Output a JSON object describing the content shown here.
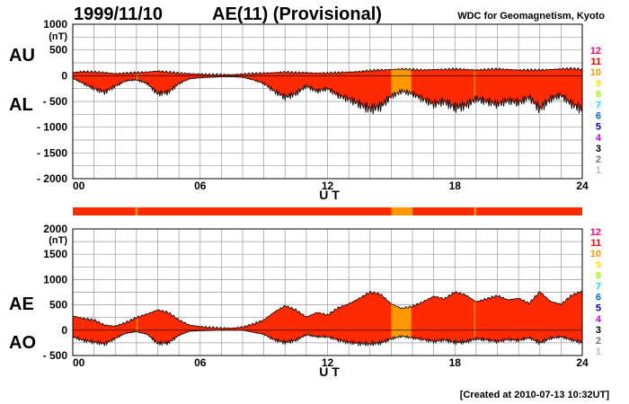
{
  "header": {
    "date": "1999/11/10",
    "title": "AE(11) (Provisional)",
    "source": "WDC for Geomagnetism, Kyoto"
  },
  "footer": {
    "created": "[Created at 2010-07-13 10:32UT]"
  },
  "colors": {
    "fill_main": "#ff2a00",
    "fill_alt": "#ff9900",
    "grid": "#999999",
    "status_bar": "#ff2a00"
  },
  "station_scale": [
    {
      "label": "12",
      "color": "#ff0080"
    },
    {
      "label": "11",
      "color": "#ff0000"
    },
    {
      "label": "10",
      "color": "#ff9900"
    },
    {
      "label": "9",
      "color": "#ffe600"
    },
    {
      "label": "8",
      "color": "#a0ff00"
    },
    {
      "label": "7",
      "color": "#00e6ff"
    },
    {
      "label": "6",
      "color": "#0066ff"
    },
    {
      "label": "5",
      "color": "#0000cc"
    },
    {
      "label": "4",
      "color": "#cc00ff"
    },
    {
      "label": "3",
      "color": "#000000"
    },
    {
      "label": "2",
      "color": "#777777"
    },
    {
      "label": "1",
      "color": "#bbbbbb"
    }
  ],
  "chart_data": [
    {
      "id": "au-al",
      "type": "area",
      "title": "",
      "xlabel": "U T",
      "ylabel": "(nT)",
      "side_labels": [
        "AU",
        "AL"
      ],
      "xlim": [
        0,
        24
      ],
      "ylim": [
        -2000,
        1000
      ],
      "xticks": [
        "00",
        "06",
        "12",
        "18",
        "24"
      ],
      "yticks": [
        1000,
        500,
        0,
        -500,
        -1000,
        -1500,
        -2000
      ],
      "ytick_labels": [
        "1000",
        "500",
        "0",
        "- 500",
        "- 1000",
        "- 1500",
        "- 2000"
      ],
      "grid": true,
      "hours": [
        0,
        0.5,
        1,
        1.5,
        2,
        2.5,
        3,
        3.5,
        4,
        4.5,
        5,
        5.5,
        6,
        6.5,
        7,
        7.5,
        8,
        8.5,
        9,
        9.5,
        10,
        10.5,
        11,
        11.5,
        12,
        12.5,
        13,
        13.5,
        14,
        14.5,
        15,
        15.5,
        16,
        16.5,
        17,
        17.5,
        18,
        18.5,
        19,
        19.5,
        20,
        20.5,
        21,
        21.5,
        22,
        22.5,
        23,
        23.5,
        24
      ],
      "series": [
        {
          "name": "AU",
          "values": [
            60,
            80,
            70,
            60,
            40,
            50,
            60,
            70,
            90,
            70,
            50,
            40,
            30,
            20,
            20,
            20,
            30,
            40,
            50,
            60,
            70,
            60,
            60,
            50,
            50,
            60,
            70,
            80,
            100,
            110,
            120,
            130,
            120,
            110,
            120,
            120,
            130,
            120,
            110,
            120,
            130,
            120,
            110,
            110,
            110,
            120,
            130,
            140,
            120
          ]
        },
        {
          "name": "AL",
          "values": [
            -50,
            -150,
            -250,
            -320,
            -200,
            -100,
            -80,
            -150,
            -350,
            -320,
            -150,
            -60,
            -40,
            -30,
            -20,
            -20,
            -30,
            -80,
            -150,
            -300,
            -420,
            -350,
            -200,
            -300,
            -250,
            -380,
            -450,
            -550,
            -650,
            -600,
            -400,
            -300,
            -350,
            -450,
            -550,
            -500,
            -620,
            -580,
            -450,
            -500,
            -550,
            -480,
            -520,
            -420,
            -650,
            -450,
            -380,
            -550,
            -650
          ]
        }
      ]
    },
    {
      "id": "ae-ao",
      "type": "area",
      "title": "",
      "xlabel": "U T",
      "ylabel": "(nT)",
      "side_labels": [
        "AE",
        "AO"
      ],
      "xlim": [
        0,
        24
      ],
      "ylim": [
        -500,
        2000
      ],
      "xticks": [
        "00",
        "06",
        "12",
        "18",
        "24"
      ],
      "yticks": [
        2000,
        1500,
        1000,
        500,
        0,
        -500
      ],
      "ytick_labels": [
        "2000",
        "1500",
        "1000",
        "500",
        "0",
        "- 500"
      ],
      "grid": true,
      "hours": [
        0,
        0.5,
        1,
        1.5,
        2,
        2.5,
        3,
        3.5,
        4,
        4.5,
        5,
        5.5,
        6,
        6.5,
        7,
        7.5,
        8,
        8.5,
        9,
        9.5,
        10,
        10.5,
        11,
        11.5,
        12,
        12.5,
        13,
        13.5,
        14,
        14.5,
        15,
        15.5,
        16,
        16.5,
        17,
        17.5,
        18,
        18.5,
        19,
        19.5,
        20,
        20.5,
        21,
        21.5,
        22,
        22.5,
        23,
        23.5,
        24
      ],
      "series": [
        {
          "name": "AE",
          "values": [
            280,
            230,
            200,
            100,
            80,
            150,
            250,
            320,
            400,
            350,
            200,
            100,
            70,
            50,
            40,
            40,
            60,
            120,
            200,
            360,
            480,
            400,
            260,
            350,
            300,
            440,
            520,
            630,
            750,
            710,
            520,
            430,
            470,
            560,
            670,
            620,
            750,
            700,
            560,
            620,
            680,
            600,
            630,
            530,
            760,
            570,
            510,
            690,
            770
          ]
        },
        {
          "name": "AO",
          "values": [
            -130,
            -200,
            -230,
            -270,
            -160,
            -60,
            -30,
            -80,
            -260,
            -250,
            -100,
            -20,
            -10,
            -5,
            0,
            0,
            0,
            -40,
            -80,
            -190,
            -240,
            -200,
            -90,
            -130,
            -130,
            -190,
            -240,
            -260,
            -270,
            -250,
            -170,
            -120,
            -150,
            -180,
            -220,
            -190,
            -240,
            -230,
            -170,
            -190,
            -220,
            -180,
            -200,
            -150,
            -250,
            -160,
            -130,
            -190,
            -240
          ]
        }
      ]
    }
  ],
  "status_bar": {
    "alt_segments": [
      [
        2.95,
        3.05
      ],
      [
        15.0,
        16.0
      ],
      [
        18.9,
        19.0
      ]
    ]
  }
}
